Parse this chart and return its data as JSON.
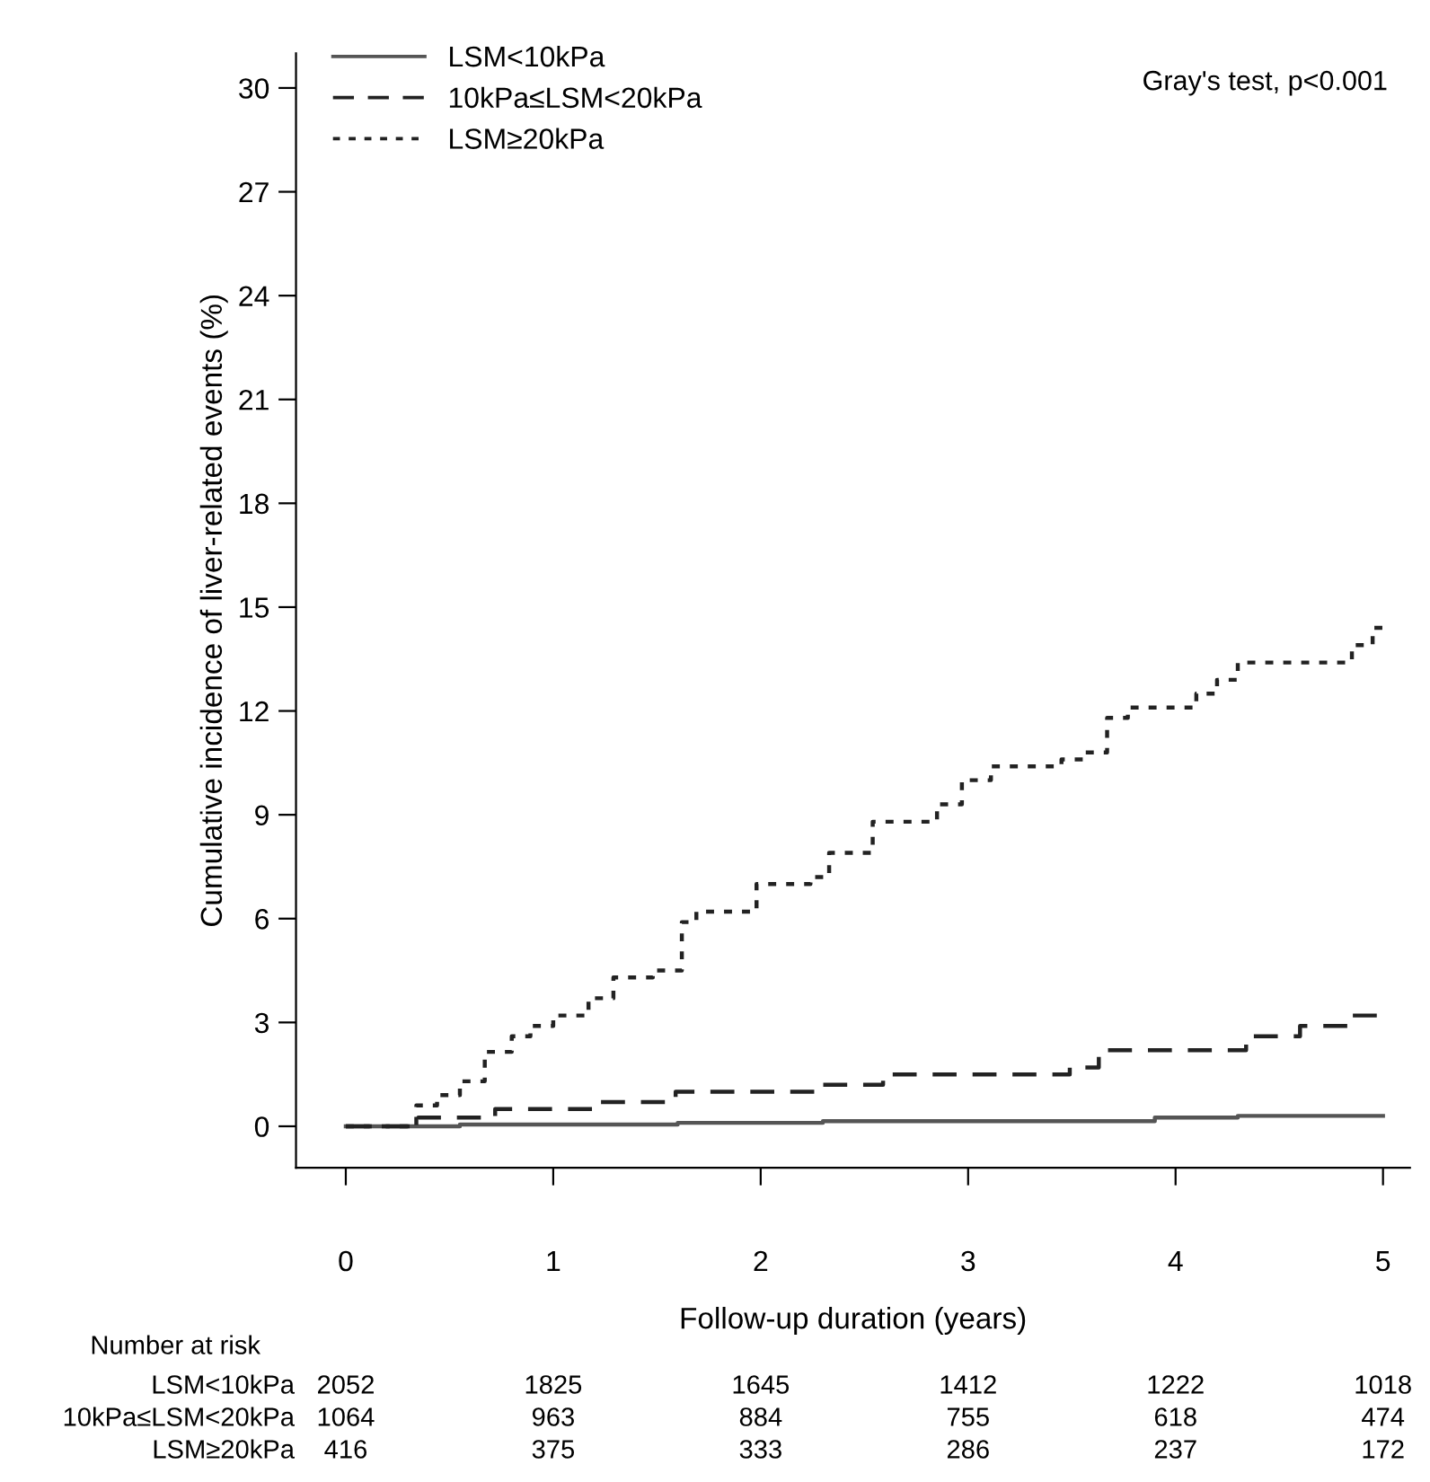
{
  "chart_data": {
    "type": "step",
    "xlabel": "Follow-up duration (years)",
    "ylabel": "Cumulative incidence of liver-related events (%)",
    "xlim": [
      -0.24,
      5.13
    ],
    "ylim": [
      -1.2,
      31
    ],
    "xticks": [
      0,
      1,
      2,
      3,
      4,
      5
    ],
    "yticks": [
      0,
      3,
      6,
      9,
      12,
      15,
      18,
      21,
      24,
      27,
      30
    ],
    "grid": false,
    "legend": "top left",
    "marker": "none",
    "series": [
      {
        "name": "LSM<10kPa",
        "color": "#555555",
        "line_style": "solid",
        "x": [
          0,
          0.55,
          1.6,
          2.3,
          3.9,
          4.3,
          5.0
        ],
        "values": [
          0,
          0.05,
          0.1,
          0.15,
          0.25,
          0.3,
          0.3
        ]
      },
      {
        "name": "10kPa≤LSM<20kPa",
        "color": "#222222",
        "line_style": "dashed",
        "x": [
          0,
          0.35,
          0.72,
          1.2,
          1.59,
          2.28,
          2.59,
          3.49,
          3.63,
          4.34,
          4.6,
          4.85,
          5.0
        ],
        "values": [
          0,
          0.25,
          0.5,
          0.7,
          1.0,
          1.2,
          1.5,
          1.7,
          2.2,
          2.6,
          2.9,
          3.2,
          3.3
        ]
      },
      {
        "name": "LSM≥20kPa",
        "color": "#222222",
        "line_style": "dotted",
        "x": [
          0,
          0.34,
          0.44,
          0.55,
          0.67,
          0.8,
          0.89,
          1.0,
          1.17,
          1.29,
          1.48,
          1.62,
          1.69,
          1.98,
          2.24,
          2.33,
          2.54,
          2.85,
          2.97,
          3.11,
          3.45,
          3.56,
          3.67,
          3.77,
          4.1,
          4.2,
          4.3,
          4.85,
          4.95,
          5.0
        ],
        "values": [
          0,
          0.6,
          0.9,
          1.3,
          2.15,
          2.6,
          2.9,
          3.2,
          3.7,
          4.3,
          4.5,
          5.9,
          6.2,
          7.0,
          7.2,
          7.9,
          8.8,
          9.3,
          10.0,
          10.4,
          10.6,
          10.8,
          11.8,
          12.1,
          12.5,
          12.9,
          13.4,
          13.9,
          14.4,
          14.4
        ]
      }
    ],
    "annotations": [
      "Gray's test, p<0.001",
      "Number at risk",
      "2052",
      "1825",
      "1645",
      "1412",
      "1222",
      "1018",
      "1064",
      "963",
      "884",
      "755",
      "618",
      "474",
      "416",
      "375",
      "333",
      "286",
      "237",
      "172"
    ]
  }
}
